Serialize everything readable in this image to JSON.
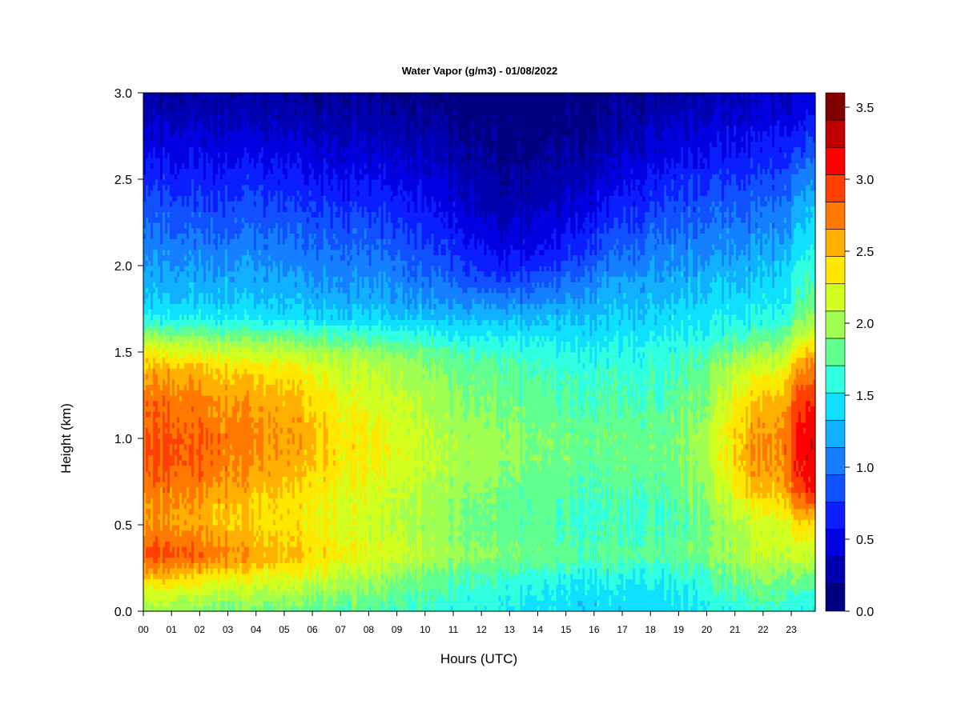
{
  "chart_data": {
    "type": "heatmap",
    "title": "Water Vapor (g/m3) - 01/08/2022",
    "xlabel": "Hours (UTC)",
    "ylabel": "Height (km)",
    "x_ticks": [
      "00",
      "01",
      "02",
      "03",
      "04",
      "05",
      "06",
      "07",
      "08",
      "09",
      "10",
      "11",
      "12",
      "13",
      "14",
      "15",
      "16",
      "17",
      "18",
      "19",
      "20",
      "21",
      "22",
      "23"
    ],
    "x_range": [
      0,
      23.85
    ],
    "y_ticks": [
      "0.0",
      "0.5",
      "1.0",
      "1.5",
      "2.0",
      "2.5",
      "3.0"
    ],
    "ylim": [
      0.0,
      3.0
    ],
    "colorbar": {
      "levels": [
        0.0,
        0.2,
        0.4,
        0.6,
        0.8,
        1.0,
        1.2,
        1.4,
        1.6,
        1.8,
        2.0,
        2.2,
        2.4,
        2.6,
        2.8,
        3.0,
        3.2,
        3.4,
        3.6
      ],
      "colors": [
        "#000080",
        "#0000b0",
        "#0000e0",
        "#0a1eff",
        "#1050ff",
        "#1480ff",
        "#10b0ff",
        "#10e0ff",
        "#30ffe0",
        "#60ff90",
        "#a0ff50",
        "#d0ff20",
        "#ffe800",
        "#ffb000",
        "#ff7800",
        "#ff4000",
        "#ff0000",
        "#c00000",
        "#800000"
      ],
      "tick_labels": [
        "0.0",
        "0.5",
        "1.0",
        "1.5",
        "2.0",
        "2.5",
        "3.0",
        "3.5"
      ],
      "tick_values": [
        0.0,
        0.5,
        1.0,
        1.5,
        2.0,
        2.5,
        3.0,
        3.5
      ]
    },
    "profiles": {
      "heights_km": [
        0.0,
        0.1,
        0.2,
        0.3,
        0.35,
        0.4,
        0.5,
        0.6,
        0.7,
        0.8,
        0.9,
        1.0,
        1.1,
        1.2,
        1.3,
        1.4,
        1.5,
        1.6,
        1.7,
        1.8,
        1.9,
        2.0,
        2.1,
        2.2,
        2.3,
        2.4,
        2.5,
        2.6,
        2.7,
        2.8,
        2.9,
        3.0
      ],
      "hours": [
        0.0,
        1.0,
        2.5,
        4.0,
        5.5,
        7.0,
        9.0,
        11.0,
        12.7,
        14.5,
        16.5,
        18.5,
        20.0,
        21.5,
        22.6,
        23.3,
        23.85
      ],
      "values": [
        [
          2.1,
          2.3,
          2.6,
          2.95,
          3.05,
          2.9,
          2.75,
          2.75,
          2.85,
          2.95,
          3.0,
          3.0,
          2.95,
          2.9,
          2.8,
          2.65,
          2.4,
          2.0,
          1.6,
          1.4,
          1.3,
          1.2,
          1.1,
          1.0,
          0.9,
          0.8,
          0.7,
          0.6,
          0.5,
          0.4,
          0.3,
          0.25
        ],
        [
          2.05,
          2.3,
          2.6,
          3.0,
          3.1,
          2.95,
          2.8,
          2.8,
          2.9,
          3.0,
          3.05,
          3.05,
          3.0,
          2.95,
          2.85,
          2.7,
          2.4,
          2.0,
          1.6,
          1.4,
          1.3,
          1.2,
          1.1,
          1.0,
          0.9,
          0.8,
          0.7,
          0.6,
          0.5,
          0.4,
          0.3,
          0.25
        ],
        [
          2.0,
          2.2,
          2.5,
          2.85,
          2.9,
          2.8,
          2.7,
          2.7,
          2.8,
          2.9,
          2.95,
          2.95,
          2.9,
          2.85,
          2.75,
          2.6,
          2.3,
          1.95,
          1.6,
          1.4,
          1.3,
          1.2,
          1.1,
          1.0,
          0.9,
          0.8,
          0.7,
          0.6,
          0.5,
          0.4,
          0.3,
          0.25
        ],
        [
          1.95,
          2.15,
          2.4,
          2.7,
          2.75,
          2.65,
          2.55,
          2.55,
          2.65,
          2.75,
          2.8,
          2.85,
          2.8,
          2.75,
          2.65,
          2.5,
          2.25,
          1.9,
          1.55,
          1.4,
          1.3,
          1.2,
          1.1,
          1.0,
          0.9,
          0.8,
          0.7,
          0.6,
          0.5,
          0.4,
          0.3,
          0.25
        ],
        [
          1.9,
          2.1,
          2.35,
          2.6,
          2.6,
          2.55,
          2.5,
          2.5,
          2.55,
          2.65,
          2.7,
          2.75,
          2.7,
          2.65,
          2.55,
          2.45,
          2.2,
          1.85,
          1.5,
          1.35,
          1.25,
          1.15,
          1.05,
          0.95,
          0.85,
          0.75,
          0.65,
          0.55,
          0.45,
          0.35,
          0.25,
          0.2
        ],
        [
          1.85,
          2.0,
          2.2,
          2.4,
          2.45,
          2.4,
          2.35,
          2.35,
          2.4,
          2.45,
          2.5,
          2.5,
          2.45,
          2.4,
          2.35,
          2.25,
          2.1,
          1.8,
          1.45,
          1.3,
          1.2,
          1.1,
          1.0,
          0.9,
          0.8,
          0.7,
          0.6,
          0.5,
          0.4,
          0.3,
          0.25,
          0.2
        ],
        [
          1.8,
          1.9,
          2.05,
          2.25,
          2.3,
          2.25,
          2.2,
          2.2,
          2.25,
          2.3,
          2.35,
          2.35,
          2.3,
          2.25,
          2.2,
          2.15,
          2.0,
          1.7,
          1.4,
          1.25,
          1.15,
          1.05,
          0.95,
          0.85,
          0.75,
          0.65,
          0.55,
          0.45,
          0.35,
          0.3,
          0.2,
          0.15
        ],
        [
          1.7,
          1.75,
          1.85,
          2.05,
          2.1,
          2.05,
          2.0,
          2.05,
          2.1,
          2.15,
          2.15,
          2.15,
          2.1,
          2.05,
          2.0,
          1.95,
          1.85,
          1.6,
          1.35,
          1.15,
          1.0,
          0.85,
          0.75,
          0.65,
          0.55,
          0.45,
          0.4,
          0.3,
          0.25,
          0.2,
          0.15,
          0.1
        ],
        [
          1.6,
          1.65,
          1.75,
          1.95,
          2.0,
          1.95,
          1.9,
          1.9,
          1.95,
          2.0,
          2.05,
          2.05,
          2.0,
          1.95,
          1.9,
          1.85,
          1.75,
          1.55,
          1.35,
          1.1,
          0.85,
          0.65,
          0.5,
          0.4,
          0.3,
          0.25,
          0.2,
          0.15,
          0.1,
          0.1,
          0.08,
          0.05
        ],
        [
          1.5,
          1.55,
          1.65,
          1.85,
          1.9,
          1.85,
          1.8,
          1.8,
          1.85,
          1.9,
          1.95,
          1.95,
          1.9,
          1.85,
          1.8,
          1.75,
          1.65,
          1.5,
          1.35,
          1.15,
          0.95,
          0.75,
          0.6,
          0.5,
          0.4,
          0.3,
          0.25,
          0.2,
          0.15,
          0.1,
          0.1,
          0.08
        ],
        [
          1.45,
          1.5,
          1.6,
          1.8,
          1.85,
          1.8,
          1.75,
          1.75,
          1.8,
          1.85,
          1.9,
          1.9,
          1.85,
          1.8,
          1.75,
          1.7,
          1.6,
          1.5,
          1.4,
          1.3,
          1.2,
          1.05,
          0.9,
          0.8,
          0.65,
          0.55,
          0.45,
          0.35,
          0.25,
          0.2,
          0.15,
          0.1
        ],
        [
          1.5,
          1.55,
          1.65,
          1.85,
          1.9,
          1.85,
          1.8,
          1.8,
          1.85,
          1.9,
          1.95,
          1.95,
          1.9,
          1.85,
          1.8,
          1.75,
          1.7,
          1.6,
          1.5,
          1.4,
          1.3,
          1.2,
          1.1,
          1.0,
          0.9,
          0.8,
          0.7,
          0.6,
          0.5,
          0.4,
          0.3,
          0.25
        ],
        [
          1.6,
          1.7,
          1.8,
          1.95,
          2.0,
          1.95,
          1.95,
          2.0,
          2.05,
          2.1,
          2.15,
          2.15,
          2.1,
          2.05,
          2.0,
          1.95,
          1.8,
          1.65,
          1.55,
          1.45,
          1.35,
          1.25,
          1.15,
          1.05,
          0.95,
          0.85,
          0.75,
          0.65,
          0.55,
          0.45,
          0.35,
          0.3
        ],
        [
          1.7,
          1.85,
          2.0,
          2.15,
          2.2,
          2.2,
          2.25,
          2.4,
          2.6,
          2.7,
          2.75,
          2.75,
          2.7,
          2.6,
          2.45,
          2.3,
          2.05,
          1.8,
          1.6,
          1.5,
          1.4,
          1.3,
          1.2,
          1.1,
          1.0,
          0.9,
          0.8,
          0.7,
          0.6,
          0.5,
          0.4,
          0.35
        ],
        [
          1.7,
          1.85,
          2.0,
          2.2,
          2.25,
          2.25,
          2.3,
          2.45,
          2.65,
          2.75,
          2.8,
          2.8,
          2.75,
          2.65,
          2.5,
          2.35,
          2.1,
          1.85,
          1.65,
          1.55,
          1.45,
          1.35,
          1.25,
          1.15,
          1.05,
          0.95,
          0.85,
          0.75,
          0.65,
          0.55,
          0.45,
          0.35
        ],
        [
          1.6,
          1.75,
          1.95,
          2.2,
          2.3,
          2.35,
          2.5,
          2.8,
          3.1,
          3.2,
          3.25,
          3.25,
          3.2,
          3.1,
          2.95,
          2.8,
          2.5,
          2.2,
          1.95,
          1.8,
          1.7,
          1.6,
          1.5,
          1.4,
          1.3,
          1.2,
          1.05,
          0.9,
          0.75,
          0.6,
          0.45,
          0.4
        ],
        [
          1.55,
          1.7,
          1.9,
          2.15,
          2.25,
          2.3,
          2.5,
          2.85,
          3.2,
          3.3,
          3.35,
          3.35,
          3.3,
          3.2,
          3.05,
          2.9,
          2.6,
          2.3,
          2.05,
          1.9,
          1.8,
          1.7,
          1.6,
          1.5,
          1.4,
          1.3,
          1.15,
          1.0,
          0.85,
          0.7,
          0.55,
          0.45
        ]
      ]
    }
  }
}
